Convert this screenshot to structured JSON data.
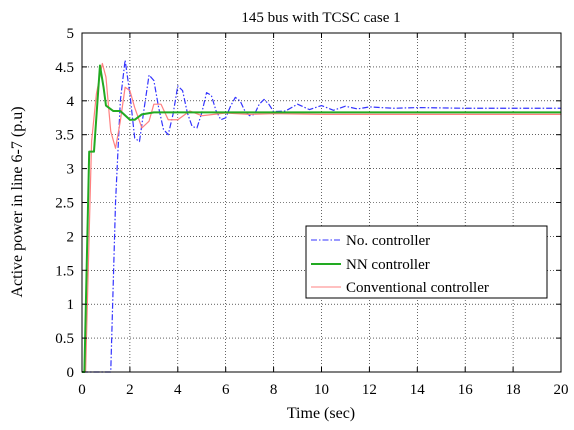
{
  "chart_data": {
    "type": "line",
    "title": "145 bus with TCSC case 1",
    "xlabel": "Time (sec)",
    "ylabel": "Active power in line 6-7 (p.u)",
    "xlim": [
      0,
      20
    ],
    "ylim": [
      0,
      5
    ],
    "grid": true,
    "legend_position": "lower-right",
    "xticks": [
      "0",
      "2",
      "4",
      "6",
      "8",
      "10",
      "12",
      "14",
      "16",
      "18",
      "20"
    ],
    "yticks": [
      "0",
      "0.5",
      "1",
      "1.5",
      "2",
      "2.5",
      "3",
      "3.5",
      "4",
      "4.5",
      "5"
    ],
    "series": [
      {
        "name": "No. controller",
        "color": "#3333ff",
        "style": "dashdot",
        "x": [
          0,
          1.2,
          1.4,
          1.6,
          1.8,
          2.0,
          2.2,
          2.4,
          2.6,
          2.8,
          3.0,
          3.2,
          3.4,
          3.6,
          3.8,
          4.0,
          4.2,
          4.4,
          4.6,
          4.8,
          5.0,
          5.2,
          5.4,
          5.6,
          5.8,
          6.0,
          6.2,
          6.4,
          6.6,
          6.8,
          7.0,
          7.2,
          7.4,
          7.6,
          7.8,
          8.0,
          8.5,
          9.0,
          9.5,
          10.0,
          10.5,
          11.0,
          11.5,
          12.0,
          13.0,
          14.0,
          16.0,
          18.0,
          20.0
        ],
        "y": [
          0,
          0,
          2.5,
          4.0,
          4.6,
          4.1,
          3.45,
          3.4,
          3.9,
          4.38,
          4.3,
          3.9,
          3.58,
          3.5,
          3.8,
          4.22,
          4.15,
          3.82,
          3.62,
          3.6,
          3.82,
          4.12,
          4.08,
          3.85,
          3.72,
          3.75,
          3.92,
          4.05,
          4.0,
          3.85,
          3.78,
          3.8,
          3.95,
          4.02,
          3.95,
          3.84,
          3.85,
          3.95,
          3.87,
          3.93,
          3.86,
          3.92,
          3.88,
          3.91,
          3.89,
          3.9,
          3.89,
          3.89,
          3.89
        ]
      },
      {
        "name": "NN controller",
        "color": "#22aa22",
        "style": "solid",
        "x": [
          0,
          0.1,
          0.3,
          0.5,
          0.75,
          0.9,
          1.0,
          1.3,
          1.6,
          2.0,
          2.2,
          2.5,
          3.0,
          3.5,
          4.0,
          5.0,
          6.0,
          8.0,
          10.0,
          12.0,
          14.0,
          16.0,
          18.0,
          20.0
        ],
        "y": [
          0,
          0,
          3.25,
          3.25,
          4.52,
          4.2,
          3.93,
          3.85,
          3.85,
          3.72,
          3.72,
          3.8,
          3.83,
          3.83,
          3.83,
          3.83,
          3.83,
          3.83,
          3.83,
          3.83,
          3.83,
          3.83,
          3.83,
          3.83
        ]
      },
      {
        "name": "Conventional controller",
        "color": "#ff8080",
        "style": "solid",
        "x": [
          0,
          0.15,
          0.4,
          0.6,
          0.85,
          1.0,
          1.2,
          1.4,
          1.6,
          1.8,
          2.0,
          2.2,
          2.5,
          2.8,
          3.0,
          3.3,
          3.6,
          4.0,
          4.5,
          5.0,
          5.5,
          6.0,
          7.0,
          8.0,
          10.0,
          12.0,
          14.0,
          16.0,
          18.0,
          20.0
        ],
        "y": [
          0,
          0,
          3.4,
          4.1,
          4.55,
          4.35,
          3.55,
          3.3,
          3.7,
          4.2,
          4.15,
          3.9,
          3.6,
          3.7,
          3.95,
          3.95,
          3.72,
          3.72,
          3.85,
          3.78,
          3.8,
          3.82,
          3.8,
          3.81,
          3.8,
          3.8,
          3.8,
          3.8,
          3.8,
          3.8
        ]
      }
    ]
  }
}
